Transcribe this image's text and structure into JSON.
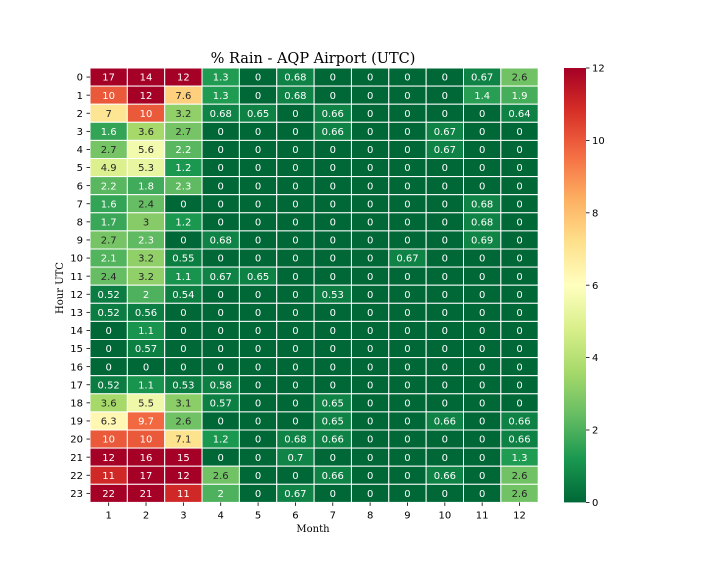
{
  "chart_data": {
    "type": "heatmap",
    "title": "% Rain - AQP Airport (UTC)",
    "xlabel": "Month",
    "ylabel": "Hour UTC",
    "x_categories": [
      "1",
      "2",
      "3",
      "4",
      "5",
      "6",
      "7",
      "8",
      "9",
      "10",
      "11",
      "12"
    ],
    "y_categories": [
      "0",
      "1",
      "2",
      "3",
      "4",
      "5",
      "6",
      "7",
      "8",
      "9",
      "10",
      "11",
      "12",
      "13",
      "14",
      "15",
      "16",
      "17",
      "18",
      "19",
      "20",
      "21",
      "22",
      "23"
    ],
    "labels": [
      [
        "17",
        "14",
        "12",
        "1.3",
        "0",
        "0.68",
        "0",
        "0",
        "0",
        "0",
        "0.67",
        "2.6"
      ],
      [
        "10",
        "12",
        "7.6",
        "1.3",
        "0",
        "0.68",
        "0",
        "0",
        "0",
        "0",
        "1.4",
        "1.9"
      ],
      [
        "7",
        "10",
        "3.2",
        "0.68",
        "0.65",
        "0",
        "0.66",
        "0",
        "0",
        "0",
        "0",
        "0.64"
      ],
      [
        "1.6",
        "3.6",
        "2.7",
        "0",
        "0",
        "0",
        "0.66",
        "0",
        "0",
        "0.67",
        "0",
        "0"
      ],
      [
        "2.7",
        "5.6",
        "2.2",
        "0",
        "0",
        "0",
        "0",
        "0",
        "0",
        "0.67",
        "0",
        "0"
      ],
      [
        "4.9",
        "5.3",
        "1.2",
        "0",
        "0",
        "0",
        "0",
        "0",
        "0",
        "0",
        "0",
        "0"
      ],
      [
        "2.2",
        "1.8",
        "2.3",
        "0",
        "0",
        "0",
        "0",
        "0",
        "0",
        "0",
        "0",
        "0"
      ],
      [
        "1.6",
        "2.4",
        "0",
        "0",
        "0",
        "0",
        "0",
        "0",
        "0",
        "0",
        "0.68",
        "0"
      ],
      [
        "1.7",
        "3",
        "1.2",
        "0",
        "0",
        "0",
        "0",
        "0",
        "0",
        "0",
        "0.68",
        "0"
      ],
      [
        "2.7",
        "2.3",
        "0",
        "0.68",
        "0",
        "0",
        "0",
        "0",
        "0",
        "0",
        "0.69",
        "0"
      ],
      [
        "2.1",
        "3.2",
        "0.55",
        "0",
        "0",
        "0",
        "0",
        "0",
        "0.67",
        "0",
        "0",
        "0"
      ],
      [
        "2.4",
        "3.2",
        "1.1",
        "0.67",
        "0.65",
        "0",
        "0",
        "0",
        "0",
        "0",
        "0",
        "0"
      ],
      [
        "0.52",
        "2",
        "0.54",
        "0",
        "0",
        "0",
        "0.53",
        "0",
        "0",
        "0",
        "0",
        "0"
      ],
      [
        "0.52",
        "0.56",
        "0",
        "0",
        "0",
        "0",
        "0",
        "0",
        "0",
        "0",
        "0",
        "0"
      ],
      [
        "0",
        "1.1",
        "0",
        "0",
        "0",
        "0",
        "0",
        "0",
        "0",
        "0",
        "0",
        "0"
      ],
      [
        "0",
        "0.57",
        "0",
        "0",
        "0",
        "0",
        "0",
        "0",
        "0",
        "0",
        "0",
        "0"
      ],
      [
        "0",
        "0",
        "0",
        "0",
        "0",
        "0",
        "0",
        "0",
        "0",
        "0",
        "0",
        "0"
      ],
      [
        "0.52",
        "1.1",
        "0.53",
        "0.58",
        "0",
        "0",
        "0",
        "0",
        "0",
        "0",
        "0",
        "0"
      ],
      [
        "3.6",
        "5.5",
        "3.1",
        "0.57",
        "0",
        "0",
        "0.65",
        "0",
        "0",
        "0",
        "0",
        "0"
      ],
      [
        "6.3",
        "9.7",
        "2.6",
        "0",
        "0",
        "0",
        "0.65",
        "0",
        "0",
        "0.66",
        "0",
        "0.66"
      ],
      [
        "10",
        "10",
        "7.1",
        "1.2",
        "0",
        "0.68",
        "0.66",
        "0",
        "0",
        "0",
        "0",
        "0.66"
      ],
      [
        "12",
        "16",
        "15",
        "0",
        "0",
        "0.7",
        "0",
        "0",
        "0",
        "0",
        "0",
        "1.3"
      ],
      [
        "11",
        "17",
        "12",
        "2.6",
        "0",
        "0",
        "0.66",
        "0",
        "0",
        "0.66",
        "0",
        "2.6"
      ],
      [
        "22",
        "21",
        "11",
        "2",
        "0",
        "0.67",
        "0",
        "0",
        "0",
        "0",
        "0",
        "2.6"
      ]
    ],
    "vmin": 0,
    "vmax": 12,
    "colormap": "RdYlGn_r",
    "colorbar_ticks": [
      "0",
      "2",
      "4",
      "6",
      "8",
      "10",
      "12"
    ],
    "annotations": true,
    "grid": false,
    "legend": "colorbar-right"
  }
}
